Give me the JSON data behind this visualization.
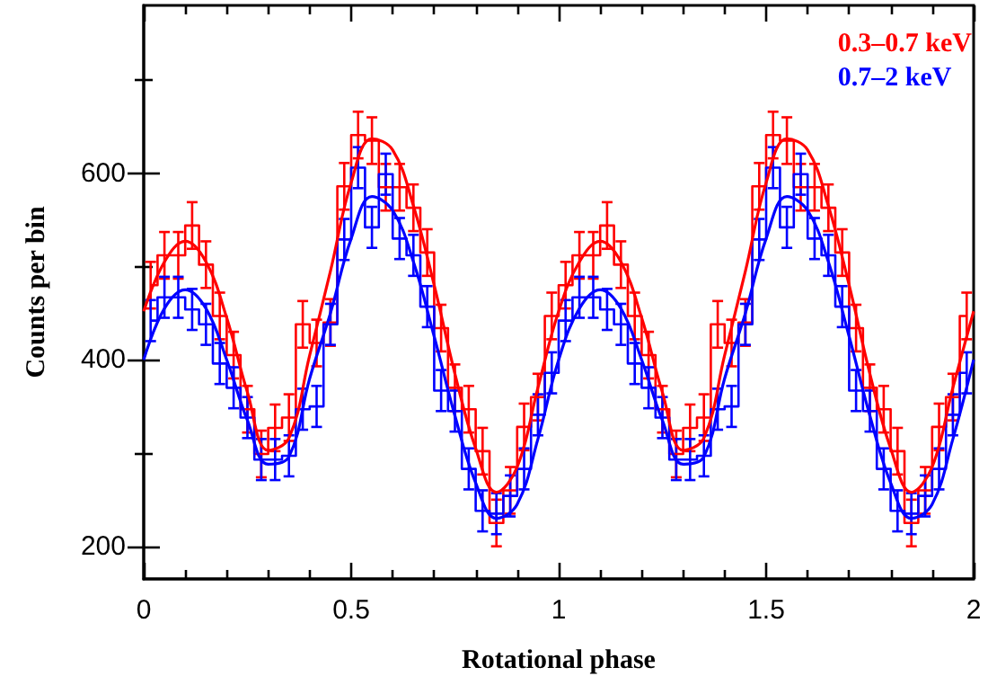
{
  "chart_data": {
    "type": "step",
    "xlabel": "Rotational phase",
    "ylabel": "Counts per bin",
    "xlim": [
      0,
      2
    ],
    "ylim": [
      165,
      780
    ],
    "xticks": [
      0,
      {
        "value": 0.1,
        "label": null
      },
      {
        "value": 0.2,
        "label": null
      },
      {
        "value": 0.3,
        "label": null
      },
      {
        "value": 0.4,
        "label": null
      },
      0.5,
      {
        "value": 0.6,
        "label": null
      },
      {
        "value": 0.7,
        "label": null
      },
      {
        "value": 0.8,
        "label": null
      },
      {
        "value": 0.9,
        "label": null
      },
      1,
      {
        "value": 1.1,
        "label": null
      },
      {
        "value": 1.2,
        "label": null
      },
      {
        "value": 1.3,
        "label": null
      },
      {
        "value": 1.4,
        "label": null
      },
      1.5,
      {
        "value": 1.6,
        "label": null
      },
      {
        "value": 1.7,
        "label": null
      },
      {
        "value": 1.8,
        "label": null
      },
      {
        "value": 1.9,
        "label": null
      },
      2
    ],
    "yticks": [
      200,
      {
        "value": 300,
        "label": null
      },
      400,
      {
        "value": 500,
        "label": null
      },
      600,
      {
        "value": 700,
        "label": null
      }
    ],
    "legend": "top right",
    "marker": "none",
    "grid": false,
    "series": [
      {
        "name": "0.3–0.7 keV",
        "color": "#ff0000",
        "x": [
          0.0167,
          0.05,
          0.0833,
          0.1167,
          0.15,
          0.1833,
          0.2167,
          0.25,
          0.2833,
          0.3167,
          0.35,
          0.3833,
          0.4167,
          0.45,
          0.4833,
          0.5167,
          0.55,
          0.5833,
          0.6167,
          0.65,
          0.6833,
          0.7167,
          0.75,
          0.7833,
          0.8167,
          0.85,
          0.8833,
          0.9167,
          0.95,
          0.9833,
          1.0167,
          1.05,
          1.0833,
          1.1167,
          1.15,
          1.1833,
          1.2167,
          1.25,
          1.2833,
          1.3167,
          1.35,
          1.3833,
          1.4167,
          1.45,
          1.4833,
          1.5167,
          1.55,
          1.5833,
          1.6167,
          1.65,
          1.6833,
          1.7167,
          1.75,
          1.7833,
          1.8167,
          1.85,
          1.8833,
          1.9167,
          1.95,
          1.9833
        ],
        "values": [
          480,
          512,
          512,
          544,
          502,
          447,
          405,
          347,
          299,
          327,
          338,
          438,
          418,
          440,
          586,
          641,
          635,
          585,
          585,
          563,
          515,
          434,
          370,
          347,
          302,
          225,
          260,
          328,
          360,
          447,
          480,
          512,
          512,
          544,
          502,
          447,
          405,
          347,
          299,
          327,
          338,
          438,
          418,
          440,
          586,
          641,
          635,
          585,
          585,
          563,
          515,
          434,
          370,
          347,
          302,
          225,
          260,
          328,
          360,
          447
        ],
        "errors": [
          25,
          25,
          25,
          25,
          25,
          25,
          25,
          25,
          25,
          25,
          25,
          25,
          25,
          25,
          25,
          25,
          25,
          25,
          25,
          25,
          25,
          25,
          25,
          25,
          25,
          25,
          25,
          25,
          25,
          25,
          25,
          25,
          25,
          25,
          25,
          25,
          25,
          25,
          25,
          25,
          25,
          25,
          25,
          25,
          25,
          25,
          25,
          25,
          25,
          25,
          25,
          25,
          25,
          25,
          25,
          25,
          25,
          25,
          25,
          25
        ]
      },
      {
        "name": "0.7–2 keV",
        "color": "#0000ff",
        "x": [
          0.0167,
          0.05,
          0.0833,
          0.1167,
          0.15,
          0.1833,
          0.2167,
          0.25,
          0.2833,
          0.3167,
          0.35,
          0.3833,
          0.4167,
          0.45,
          0.4833,
          0.5167,
          0.55,
          0.5833,
          0.6167,
          0.65,
          0.6833,
          0.7167,
          0.75,
          0.7833,
          0.8167,
          0.85,
          0.8833,
          0.9167,
          0.95,
          0.9833,
          1.0167,
          1.05,
          1.0833,
          1.1167,
          1.15,
          1.1833,
          1.2167,
          1.25,
          1.2833,
          1.3167,
          1.35,
          1.3833,
          1.4167,
          1.45,
          1.4833,
          1.5167,
          1.55,
          1.5833,
          1.6167,
          1.65,
          1.6833,
          1.7167,
          1.75,
          1.7833,
          1.8167,
          1.85,
          1.8833,
          1.9167,
          1.95,
          1.9833
        ],
        "values": [
          442,
          467,
          467,
          454,
          438,
          396,
          370,
          338,
          293,
          293,
          297,
          347,
          350,
          438,
          529,
          606,
          542,
          599,
          530,
          512,
          457,
          367,
          345,
          283,
          238,
          235,
          254,
          283,
          341,
          386,
          442,
          467,
          467,
          454,
          438,
          396,
          370,
          338,
          293,
          293,
          297,
          347,
          350,
          438,
          529,
          606,
          542,
          599,
          530,
          512,
          457,
          367,
          345,
          283,
          238,
          235,
          254,
          283,
          341,
          386
        ],
        "errors": [
          22,
          22,
          22,
          22,
          22,
          22,
          22,
          22,
          22,
          22,
          22,
          22,
          22,
          22,
          22,
          22,
          22,
          22,
          22,
          22,
          22,
          22,
          22,
          22,
          22,
          22,
          22,
          22,
          22,
          22,
          22,
          22,
          22,
          22,
          22,
          22,
          22,
          22,
          22,
          22,
          22,
          22,
          22,
          22,
          22,
          22,
          22,
          22,
          22,
          22,
          22,
          22,
          22,
          22,
          22,
          22,
          22,
          22,
          22,
          22
        ]
      },
      {
        "type": "line",
        "color": "#ff0000",
        "x": [
          0,
          0.05,
          0.1,
          0.15,
          0.2,
          0.25,
          0.3,
          0.35,
          0.4,
          0.45,
          0.5,
          0.55,
          0.6,
          0.65,
          0.7,
          0.75,
          0.8,
          0.85,
          0.9,
          0.95,
          1,
          1.05,
          1.1,
          1.15,
          1.2,
          1.25,
          1.3,
          1.35,
          1.4,
          1.45,
          1.5,
          1.55,
          1.6,
          1.65,
          1.7,
          1.75,
          1.8,
          1.85,
          1.9,
          1.95,
          2
        ],
        "values": [
          452,
          505,
          527,
          505,
          445,
          365,
          303,
          316,
          405,
          495,
          590,
          637,
          625,
          565,
          480,
          385,
          305,
          258,
          285,
          370,
          452,
          505,
          527,
          505,
          445,
          365,
          303,
          316,
          405,
          495,
          590,
          637,
          625,
          565,
          480,
          385,
          305,
          258,
          285,
          370,
          452
        ]
      },
      {
        "type": "line",
        "color": "#0000ff",
        "x": [
          0,
          0.05,
          0.1,
          0.15,
          0.2,
          0.25,
          0.3,
          0.35,
          0.4,
          0.45,
          0.5,
          0.55,
          0.6,
          0.65,
          0.7,
          0.75,
          0.8,
          0.85,
          0.9,
          0.95,
          1,
          1.05,
          1.1,
          1.15,
          1.2,
          1.25,
          1.3,
          1.35,
          1.4,
          1.45,
          1.5,
          1.55,
          1.6,
          1.65,
          1.7,
          1.75,
          1.8,
          1.85,
          1.9,
          1.95,
          2
        ],
        "values": [
          400,
          455,
          475,
          455,
          400,
          335,
          288,
          296,
          380,
          450,
          530,
          575,
          560,
          505,
          425,
          340,
          268,
          230,
          245,
          315,
          400,
          455,
          475,
          455,
          400,
          335,
          288,
          296,
          380,
          450,
          530,
          575,
          560,
          505,
          425,
          340,
          268,
          230,
          245,
          315,
          400
        ]
      }
    ]
  }
}
